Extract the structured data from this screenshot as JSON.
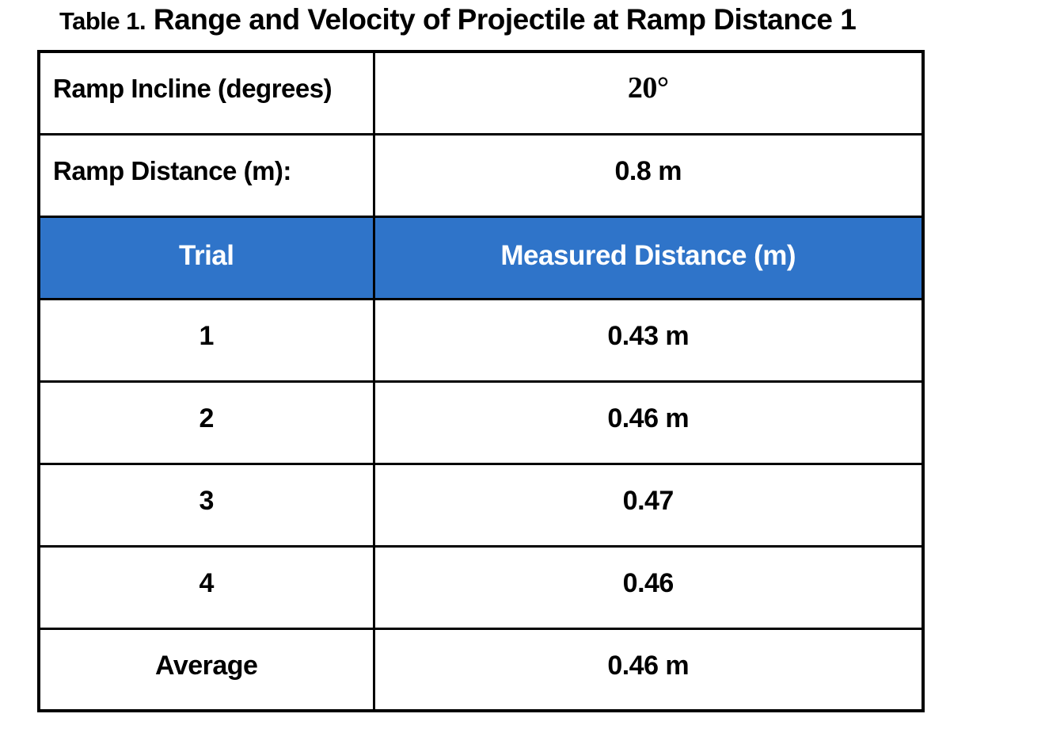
{
  "title": {
    "prefix": "Table 1.",
    "main": " Range and Velocity of Projectile at Ramp Distance 1"
  },
  "info_rows": [
    {
      "label": "Ramp Incline (degrees)",
      "value": "20°"
    },
    {
      "label": "Ramp Distance (m):",
      "value": "0.8 m"
    }
  ],
  "header": {
    "col1": "Trial",
    "col2": "Measured Distance (m)"
  },
  "trials": [
    {
      "trial": "1",
      "distance": "0.43 m"
    },
    {
      "trial": "2",
      "distance": "0.46 m"
    },
    {
      "trial": "3",
      "distance": "0.47"
    },
    {
      "trial": "4",
      "distance": "0.46"
    },
    {
      "trial": "Average",
      "distance": "0.46 m"
    }
  ],
  "colors": {
    "header_bg": "#2F74C9",
    "header_text": "#FFFFFF",
    "border": "#000000",
    "text": "#000000",
    "background": "#FFFFFF"
  },
  "chart_data": {
    "type": "table",
    "title": "Table 1. Range and Velocity of Projectile at Ramp Distance 1",
    "metadata": {
      "ramp_incline_degrees": 20,
      "ramp_distance_m": 0.8
    },
    "columns": [
      "Trial",
      "Measured Distance (m)"
    ],
    "rows": [
      [
        "1",
        0.43
      ],
      [
        "2",
        0.46
      ],
      [
        "3",
        0.47
      ],
      [
        "4",
        0.46
      ],
      [
        "Average",
        0.46
      ]
    ]
  }
}
